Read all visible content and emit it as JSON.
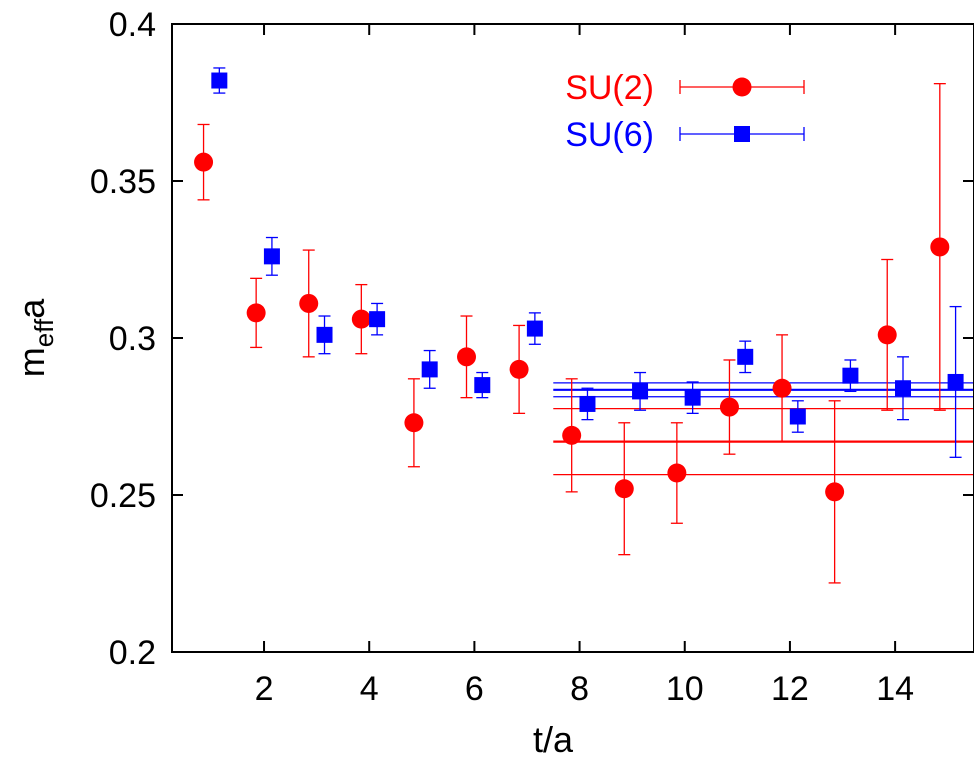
{
  "chart_data": {
    "type": "scatter",
    "xlabel": "t/a",
    "ylabel": {
      "main": "m",
      "sub": "eff",
      "tail": "a"
    },
    "xlim": [
      0.25,
      15.5
    ],
    "ylim": [
      0.2,
      0.4
    ],
    "xticks": [
      2,
      4,
      6,
      8,
      10,
      12,
      14
    ],
    "xtick_labels": [
      "2",
      "4",
      "6",
      "8",
      "10",
      "12",
      "14"
    ],
    "yticks": [
      0.2,
      0.25,
      0.3,
      0.35,
      0.4
    ],
    "ytick_labels": [
      "0.2",
      "0.25",
      "0.3",
      "0.35",
      "0.4"
    ],
    "grid": false,
    "legend_position": "top-center",
    "series": [
      {
        "name": "SU(2)",
        "color": "#ff0000",
        "marker": "circle",
        "points": [
          {
            "x": 0.85,
            "y": 0.356,
            "err": 0.012
          },
          {
            "x": 1.85,
            "y": 0.308,
            "err": 0.011
          },
          {
            "x": 2.85,
            "y": 0.311,
            "err": 0.017
          },
          {
            "x": 3.85,
            "y": 0.306,
            "err": 0.011
          },
          {
            "x": 4.85,
            "y": 0.273,
            "err": 0.014
          },
          {
            "x": 5.85,
            "y": 0.294,
            "err": 0.013
          },
          {
            "x": 6.85,
            "y": 0.29,
            "err": 0.014
          },
          {
            "x": 7.85,
            "y": 0.269,
            "err": 0.018
          },
          {
            "x": 8.85,
            "y": 0.252,
            "err": 0.021
          },
          {
            "x": 9.85,
            "y": 0.257,
            "err": 0.016
          },
          {
            "x": 10.85,
            "y": 0.278,
            "err": 0.015
          },
          {
            "x": 11.85,
            "y": 0.284,
            "err": 0.017
          },
          {
            "x": 12.85,
            "y": 0.251,
            "err": 0.029
          },
          {
            "x": 13.85,
            "y": 0.301,
            "err": 0.024
          },
          {
            "x": 14.85,
            "y": 0.329,
            "err": 0.052
          }
        ],
        "fit": {
          "x_start": 7.5,
          "value": 0.267,
          "err": 0.0105
        }
      },
      {
        "name": "SU(6)",
        "color": "#0000ff",
        "marker": "square",
        "points": [
          {
            "x": 1.15,
            "y": 0.382,
            "err": 0.004
          },
          {
            "x": 2.15,
            "y": 0.326,
            "err": 0.006
          },
          {
            "x": 3.15,
            "y": 0.301,
            "err": 0.006
          },
          {
            "x": 4.15,
            "y": 0.306,
            "err": 0.005
          },
          {
            "x": 5.15,
            "y": 0.29,
            "err": 0.006
          },
          {
            "x": 6.15,
            "y": 0.285,
            "err": 0.004
          },
          {
            "x": 7.15,
            "y": 0.303,
            "err": 0.005
          },
          {
            "x": 8.15,
            "y": 0.279,
            "err": 0.005
          },
          {
            "x": 9.15,
            "y": 0.283,
            "err": 0.006
          },
          {
            "x": 10.15,
            "y": 0.281,
            "err": 0.005
          },
          {
            "x": 11.15,
            "y": 0.294,
            "err": 0.005
          },
          {
            "x": 12.15,
            "y": 0.275,
            "err": 0.005
          },
          {
            "x": 13.15,
            "y": 0.288,
            "err": 0.005
          },
          {
            "x": 14.15,
            "y": 0.284,
            "err": 0.01
          },
          {
            "x": 15.15,
            "y": 0.286,
            "err": 0.024
          }
        ],
        "fit": {
          "x_start": 7.5,
          "value": 0.2835,
          "err": 0.0022
        }
      }
    ]
  }
}
